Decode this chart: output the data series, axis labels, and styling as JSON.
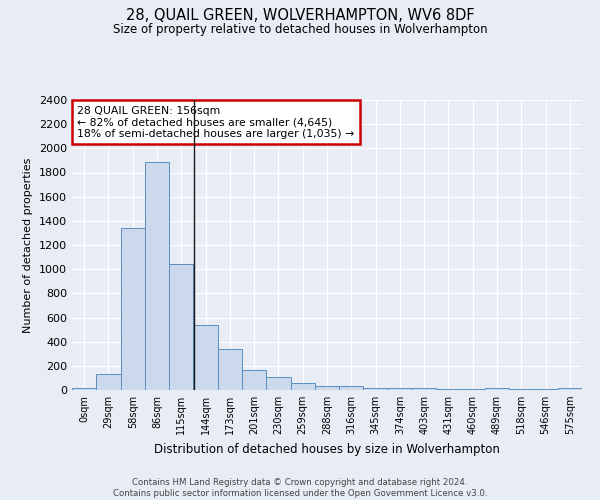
{
  "title": "28, QUAIL GREEN, WOLVERHAMPTON, WV6 8DF",
  "subtitle": "Size of property relative to detached houses in Wolverhampton",
  "xlabel": "Distribution of detached houses by size in Wolverhampton",
  "ylabel": "Number of detached properties",
  "categories": [
    "0sqm",
    "29sqm",
    "58sqm",
    "86sqm",
    "115sqm",
    "144sqm",
    "173sqm",
    "201sqm",
    "230sqm",
    "259sqm",
    "288sqm",
    "316sqm",
    "345sqm",
    "374sqm",
    "403sqm",
    "431sqm",
    "460sqm",
    "489sqm",
    "518sqm",
    "546sqm",
    "575sqm"
  ],
  "values": [
    15,
    130,
    1340,
    1890,
    1040,
    540,
    340,
    165,
    110,
    55,
    35,
    30,
    20,
    15,
    20,
    5,
    5,
    20,
    5,
    5,
    20
  ],
  "bar_color": "#ccd9ec",
  "bar_edge_color": "#5a8fc0",
  "annotation_text": "28 QUAIL GREEN: 156sqm\n← 82% of detached houses are smaller (4,645)\n18% of semi-detached houses are larger (1,035) →",
  "annotation_box_color": "#ffffff",
  "annotation_box_edge_color": "#cc0000",
  "property_line_x": 4.52,
  "ylim": [
    0,
    2400
  ],
  "yticks": [
    0,
    200,
    400,
    600,
    800,
    1000,
    1200,
    1400,
    1600,
    1800,
    2000,
    2200,
    2400
  ],
  "background_color": "#e8edf5",
  "plot_bg_color": "#e8edf5",
  "grid_color": "#ffffff",
  "footer_text": "Contains HM Land Registry data © Crown copyright and database right 2024.\nContains public sector information licensed under the Open Government Licence v3.0."
}
